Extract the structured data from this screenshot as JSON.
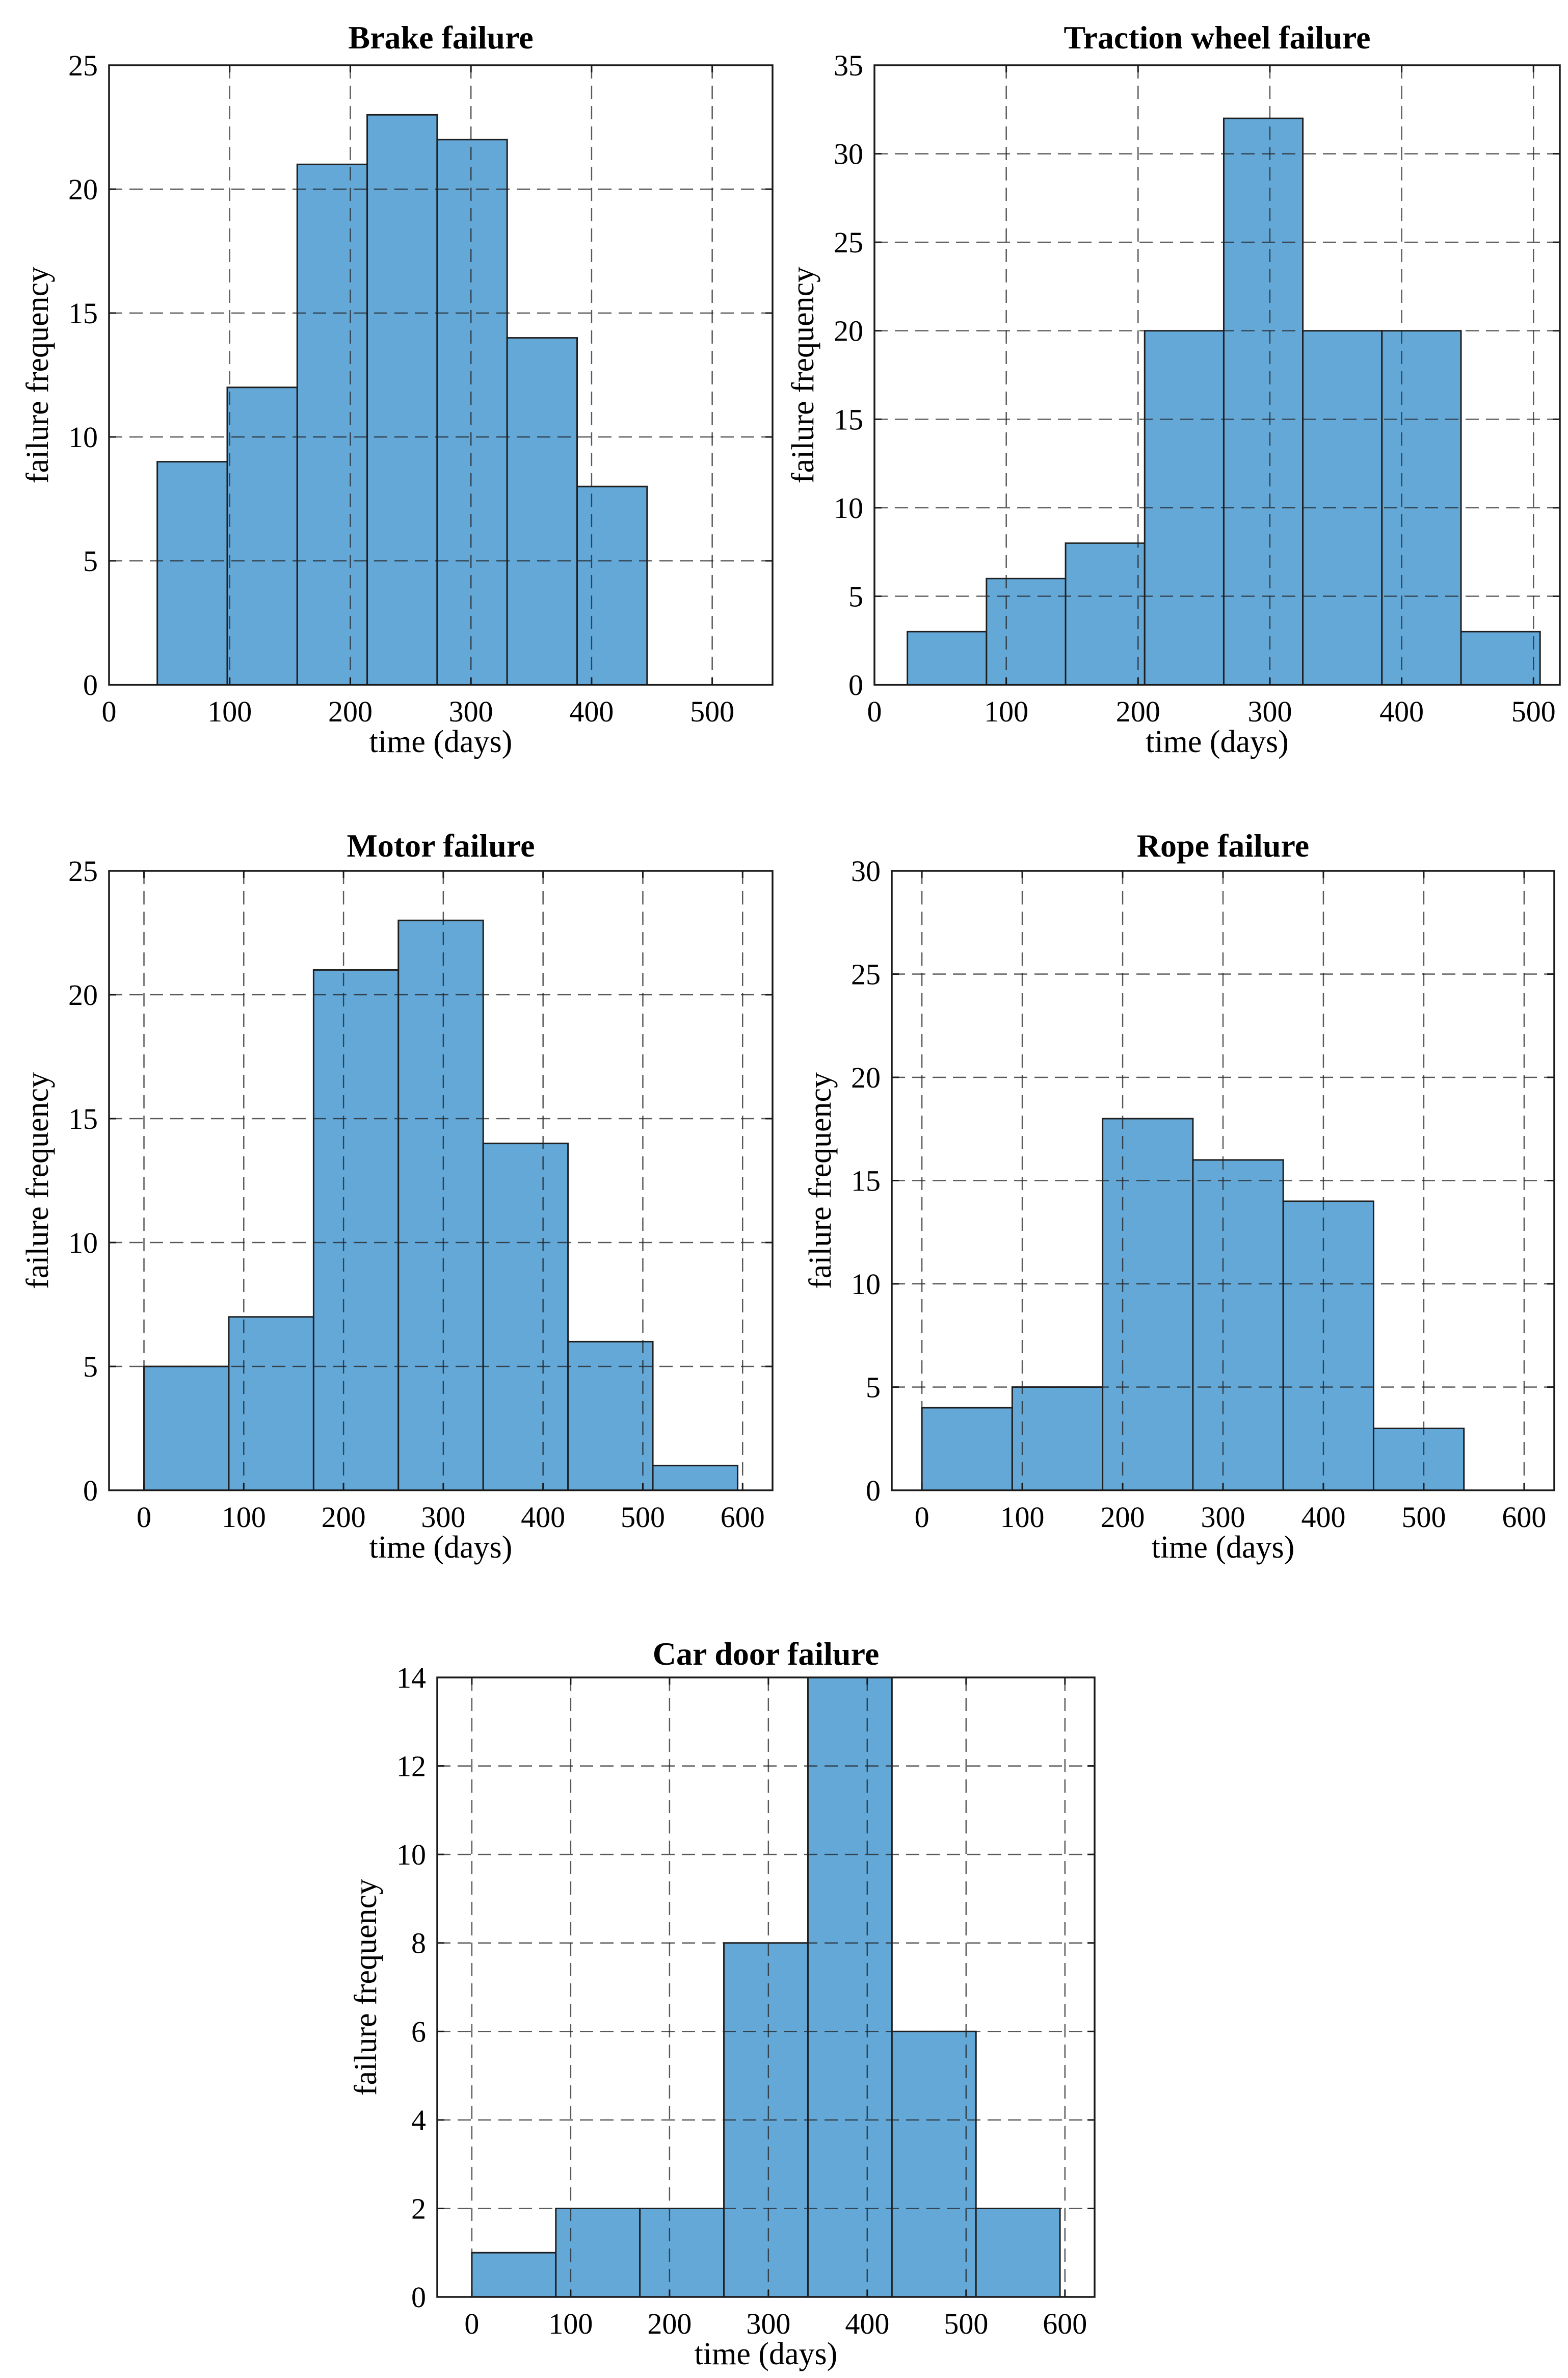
{
  "chart_data": [
    {
      "type": "bar",
      "subtype": "histogram",
      "title": "Brake failure",
      "xlabel": "time (days)",
      "ylabel": "failure frequency",
      "xlim": [
        0,
        550
      ],
      "ylim": [
        0,
        25
      ],
      "xticks": [
        0,
        100,
        200,
        300,
        400,
        500
      ],
      "yticks": [
        0,
        5,
        10,
        15,
        20,
        25
      ],
      "grid": true,
      "bin_edges": [
        40,
        98,
        156,
        214,
        272,
        330,
        388,
        446
      ],
      "values": [
        9,
        12,
        21,
        23,
        22,
        14,
        8
      ]
    },
    {
      "type": "bar",
      "subtype": "histogram",
      "title": "Traction wheel failure",
      "xlabel": "time (days)",
      "ylabel": "failure frequency",
      "xlim": [
        0,
        520
      ],
      "ylim": [
        0,
        35
      ],
      "xticks": [
        0,
        100,
        200,
        300,
        400,
        500
      ],
      "yticks": [
        0,
        5,
        10,
        15,
        20,
        25,
        30,
        35
      ],
      "grid": true,
      "bin_edges": [
        25,
        85,
        145,
        205,
        265,
        325,
        385,
        445,
        505
      ],
      "values": [
        3,
        6,
        8,
        20,
        32,
        20,
        20,
        3
      ]
    },
    {
      "type": "bar",
      "subtype": "histogram",
      "title": "Motor failure",
      "xlabel": "time (days)",
      "ylabel": "failure frequency",
      "xlim": [
        -35,
        630
      ],
      "ylim": [
        0,
        25
      ],
      "xticks": [
        0,
        100,
        200,
        300,
        400,
        500,
        600
      ],
      "yticks": [
        0,
        5,
        10,
        15,
        20,
        25
      ],
      "grid": true,
      "bin_edges": [
        0,
        85,
        170,
        255,
        340,
        425,
        510,
        595
      ],
      "values": [
        5,
        7,
        21,
        23,
        14,
        6,
        1
      ]
    },
    {
      "type": "bar",
      "subtype": "histogram",
      "title": "Rope failure",
      "xlabel": "time (days)",
      "ylabel": "failure frequency",
      "xlim": [
        -30,
        630
      ],
      "ylim": [
        0,
        30
      ],
      "xticks": [
        0,
        100,
        200,
        300,
        400,
        500,
        600
      ],
      "yticks": [
        0,
        5,
        10,
        15,
        20,
        25,
        30
      ],
      "grid": true,
      "bin_edges": [
        0,
        90,
        180,
        270,
        360,
        450,
        540
      ],
      "values": [
        4,
        5,
        18,
        16,
        14,
        3
      ]
    },
    {
      "type": "bar",
      "subtype": "histogram",
      "title": "Car door failure",
      "xlabel": "time (days)",
      "ylabel": "failure frequency",
      "xlim": [
        -35,
        630
      ],
      "ylim": [
        0,
        14
      ],
      "xticks": [
        0,
        100,
        200,
        300,
        400,
        500,
        600
      ],
      "yticks": [
        0,
        2,
        4,
        6,
        8,
        10,
        12,
        14
      ],
      "grid": true,
      "bin_edges": [
        0,
        85,
        170,
        255,
        340,
        425,
        510,
        595
      ],
      "values": [
        1,
        2,
        2,
        8,
        14,
        6,
        2
      ]
    }
  ]
}
